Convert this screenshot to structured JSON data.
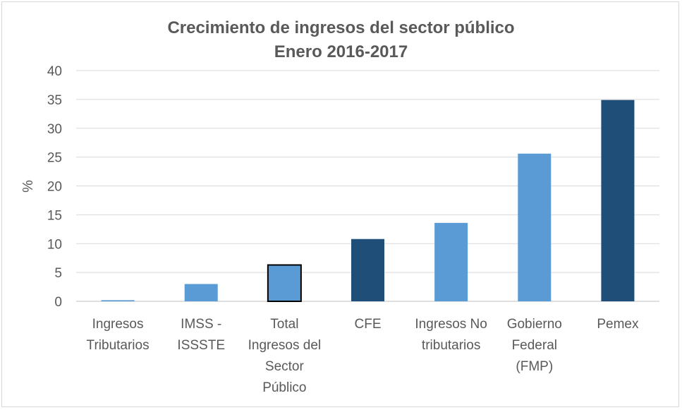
{
  "chart_data": {
    "type": "bar",
    "title": "Crecimiento de ingresos del sector público",
    "subtitle": "Enero 2016-2017",
    "ylabel": "%",
    "ylim": [
      0,
      40
    ],
    "yticks": [
      0,
      5,
      10,
      15,
      20,
      25,
      30,
      35,
      40
    ],
    "grid": true,
    "categories": [
      [
        "Ingresos",
        "Tributarios"
      ],
      [
        "IMSS -",
        "ISSSTE"
      ],
      [
        "Total",
        "Ingresos del",
        "Sector",
        "Público"
      ],
      [
        "CFE"
      ],
      [
        "Ingresos No",
        "tributarios"
      ],
      [
        "Gobierno",
        "Federal",
        "(FMP)"
      ],
      [
        "Pemex"
      ]
    ],
    "values": [
      0.2,
      3.0,
      6.3,
      10.8,
      13.6,
      25.6,
      34.9
    ],
    "colors": [
      "#5b9bd5",
      "#5b9bd5",
      "#5b9bd5",
      "#1f4e79",
      "#5b9bd5",
      "#5b9bd5",
      "#1f4e79"
    ],
    "highlight_index": 2
  }
}
